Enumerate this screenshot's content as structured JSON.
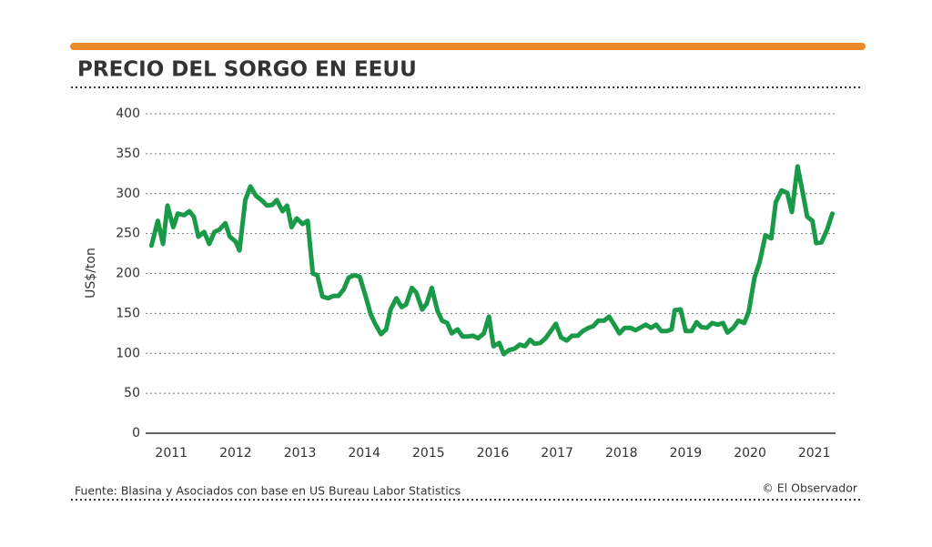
{
  "chart_data": {
    "type": "line",
    "title": "PRECIO DEL SORGO EN EEUU",
    "y_label": "US$/ton",
    "source": "Fuente: Blasina y Asociados con base en US Bureau Labor Statistics",
    "credit": "© El Observador",
    "xlim": [
      2010.6,
      2021.33
    ],
    "xticks": [
      2011,
      2012,
      2013,
      2014,
      2015,
      2016,
      2017,
      2018,
      2019,
      2020,
      2021
    ],
    "ylim": [
      0,
      400
    ],
    "yticks": [
      0,
      50,
      100,
      150,
      200,
      250,
      300,
      350,
      400
    ],
    "grid": true,
    "series": [
      {
        "color": "#1a9a48",
        "x": [
          2010.69,
          2010.79,
          2010.87,
          2010.94,
          2011.03,
          2011.1,
          2011.2,
          2011.28,
          2011.35,
          2011.42,
          2011.51,
          2011.59,
          2011.67,
          2011.75,
          2011.84,
          2011.91,
          2012.0,
          2012.06,
          2012.15,
          2012.23,
          2012.32,
          2012.4,
          2012.49,
          2012.57,
          2012.64,
          2012.73,
          2012.8,
          2012.87,
          2012.95,
          2013.04,
          2013.12,
          2013.2,
          2013.27,
          2013.35,
          2013.44,
          2013.52,
          2013.6,
          2013.68,
          2013.76,
          2013.85,
          2013.93,
          2014.02,
          2014.1,
          2014.17,
          2014.26,
          2014.34,
          2014.41,
          2014.5,
          2014.58,
          2014.65,
          2014.74,
          2014.81,
          2014.9,
          2014.97,
          2015.05,
          2015.14,
          2015.21,
          2015.29,
          2015.36,
          2015.45,
          2015.53,
          2015.6,
          2015.69,
          2015.77,
          2015.86,
          2015.94,
          2016.01,
          2016.1,
          2016.17,
          2016.25,
          2016.34,
          2016.42,
          2016.5,
          2016.58,
          2016.65,
          2016.74,
          2016.82,
          2016.91,
          2016.98,
          2017.06,
          2017.15,
          2017.23,
          2017.32,
          2017.4,
          2017.49,
          2017.56,
          2017.64,
          2017.73,
          2017.81,
          2017.88,
          2017.97,
          2018.05,
          2018.14,
          2018.22,
          2018.29,
          2018.38,
          2018.46,
          2018.54,
          2018.62,
          2018.71,
          2018.78,
          2018.83,
          2018.92,
          2019.0,
          2019.09,
          2019.17,
          2019.24,
          2019.33,
          2019.41,
          2019.5,
          2019.58,
          2019.65,
          2019.74,
          2019.82,
          2019.91,
          2019.98,
          2020.07,
          2020.15,
          2020.24,
          2020.33,
          2020.4,
          2020.49,
          2020.58,
          2020.65,
          2020.74,
          2020.82,
          2020.89,
          2020.97,
          2021.03,
          2021.11,
          2021.2,
          2021.28
        ],
        "values": [
          235,
          266,
          237,
          285,
          258,
          275,
          273,
          278,
          271,
          246,
          252,
          237,
          252,
          255,
          263,
          246,
          240,
          229,
          292,
          309,
          297,
          292,
          285,
          286,
          292,
          278,
          285,
          258,
          269,
          262,
          266,
          200,
          198,
          171,
          169,
          172,
          172,
          180,
          195,
          198,
          196,
          172,
          149,
          137,
          124,
          130,
          155,
          169,
          158,
          161,
          182,
          176,
          155,
          162,
          182,
          153,
          141,
          138,
          125,
          130,
          121,
          121,
          122,
          119,
          125,
          146,
          109,
          113,
          99,
          104,
          106,
          111,
          109,
          117,
          112,
          113,
          119,
          129,
          137,
          120,
          116,
          122,
          122,
          128,
          132,
          134,
          141,
          141,
          146,
          137,
          125,
          132,
          132,
          129,
          132,
          136,
          132,
          136,
          128,
          128,
          130,
          154,
          155,
          128,
          128,
          139,
          133,
          132,
          138,
          136,
          138,
          126,
          132,
          141,
          138,
          152,
          195,
          214,
          248,
          244,
          289,
          304,
          301,
          277,
          334,
          301,
          271,
          266,
          238,
          239,
          255,
          275
        ]
      }
    ]
  }
}
